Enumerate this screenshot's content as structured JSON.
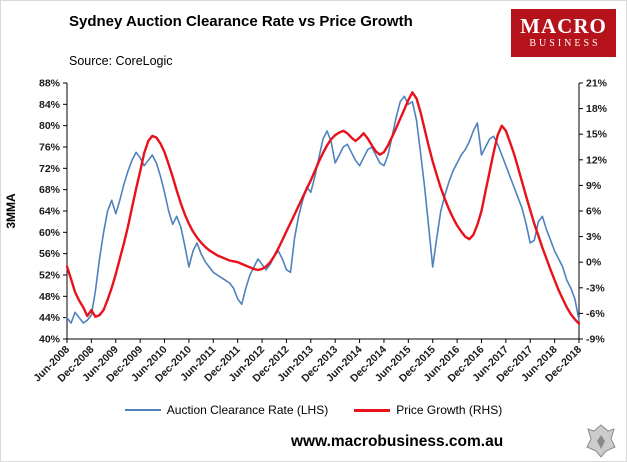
{
  "header": {
    "title": "Sydney Auction Clearance Rate vs Price Growth",
    "source": "Source: CoreLogic",
    "logo": {
      "line1": "MACRO",
      "line2": "BUSINESS"
    }
  },
  "chart_data": {
    "type": "line",
    "title": "Sydney Auction Clearance Rate vs Price Growth",
    "ylabel_left": "3MMA",
    "axis_left": {
      "min": 40,
      "max": 88,
      "step": 4,
      "format": "percent"
    },
    "axis_right": {
      "min": -9,
      "max": 21,
      "step": 3,
      "format": "percent"
    },
    "x": {
      "start": "Jun-2008",
      "end": "Dec-2018",
      "freq": "monthly",
      "n": 127
    },
    "x_tick_labels": [
      "Jun-2008",
      "Dec-2008",
      "Jun-2009",
      "Dec-2009",
      "Jun-2010",
      "Dec-2010",
      "Jun-2011",
      "Dec-2011",
      "Jun-2012",
      "Dec-2012",
      "Jun-2013",
      "Dec-2013",
      "Jun-2014",
      "Dec-2014",
      "Jun-2015",
      "Dec-2015",
      "Jun-2016",
      "Dec-2016",
      "Jun-2017",
      "Dec-2017",
      "Jun-2018",
      "Dec-2018"
    ],
    "x_tick_every": 6,
    "grid": false,
    "legend_position": "bottom",
    "series": [
      {
        "name": "Auction Clearance Rate (LHS)",
        "axis": "left",
        "color": "#4f81bd",
        "width": 1.6,
        "values": [
          44,
          43,
          45,
          44,
          43,
          43.5,
          44.5,
          49,
          55,
          60,
          64,
          66,
          63.5,
          66,
          69,
          71.5,
          73.5,
          75,
          74,
          72.5,
          73.5,
          74.5,
          73,
          70.5,
          67.5,
          64,
          61.5,
          63,
          61,
          57.5,
          53.5,
          56.5,
          58,
          56,
          54.5,
          53.5,
          52.5,
          52,
          51.5,
          51,
          50.5,
          49.5,
          47.5,
          46.5,
          49.5,
          52,
          53.5,
          55,
          54,
          53,
          54,
          55.5,
          56.5,
          55,
          53,
          52.5,
          59,
          63,
          66,
          68.5,
          67.5,
          70.5,
          74,
          77.5,
          79,
          77,
          73,
          74.5,
          76,
          76.5,
          75,
          73.5,
          72.5,
          74,
          75.5,
          76,
          74.5,
          73,
          72.5,
          74.5,
          78,
          81.5,
          84.5,
          85.5,
          84,
          84.5,
          81,
          75,
          68.5,
          61,
          53.5,
          59,
          64,
          67,
          69.5,
          71.5,
          73,
          74.5,
          75.5,
          77,
          79,
          80.5,
          74.5,
          76,
          77.5,
          78,
          76.5,
          74.5,
          72.5,
          70.5,
          68.5,
          66.5,
          64.5,
          61.5,
          58,
          58.5,
          62,
          63,
          60.5,
          58.5,
          56.5,
          55,
          53.5,
          51,
          49.5,
          47.5,
          43.5
        ]
      },
      {
        "name": "Price Growth (RHS)",
        "axis": "right",
        "color": "#e8111c",
        "width": 2.4,
        "values": [
          -0.5,
          -2,
          -3.5,
          -4.5,
          -5.3,
          -6.3,
          -5.6,
          -6.4,
          -6.2,
          -5.6,
          -4.4,
          -3,
          -1.4,
          0.4,
          2.2,
          4.2,
          6.4,
          8.6,
          10.6,
          12.8,
          14.2,
          14.8,
          14.6,
          13.9,
          12.9,
          11.5,
          10,
          8.4,
          6.9,
          5.6,
          4.5,
          3.6,
          2.9,
          2.3,
          1.8,
          1.4,
          1.1,
          0.8,
          0.6,
          0.4,
          0.2,
          0.1,
          0,
          -0.2,
          -0.4,
          -0.6,
          -0.8,
          -0.9,
          -0.8,
          -0.5,
          0,
          0.7,
          1.6,
          2.6,
          3.6,
          4.6,
          5.6,
          6.6,
          7.6,
          8.6,
          9.6,
          10.7,
          11.8,
          12.8,
          13.7,
          14.4,
          14.9,
          15.2,
          15.4,
          15.1,
          14.6,
          14.2,
          14.6,
          15.1,
          14.5,
          13.7,
          13,
          12.6,
          12.9,
          13.7,
          14.7,
          15.7,
          16.8,
          17.9,
          19,
          19.9,
          19.2,
          17.6,
          15.6,
          13.6,
          11.8,
          10.2,
          8.7,
          7.4,
          6.2,
          5.2,
          4.3,
          3.6,
          3,
          2.7,
          3.2,
          4.4,
          6,
          8.3,
          10.6,
          12.9,
          14.9,
          16,
          15.4,
          14.1,
          12.7,
          11.1,
          9.4,
          7.7,
          6.1,
          4.5,
          3.1,
          1.7,
          0.4,
          -0.9,
          -2.1,
          -3.3,
          -4.3,
          -5.3,
          -6.1,
          -6.7,
          -7.2
        ]
      }
    ]
  },
  "footer": {
    "website": "www.macrobusiness.com.au"
  }
}
